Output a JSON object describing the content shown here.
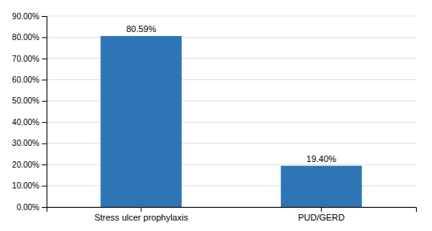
{
  "chart_data": {
    "type": "bar",
    "categories": [
      "Stress ulcer prophylaxis",
      "PUD/GERD"
    ],
    "values": [
      80.59,
      19.4
    ],
    "value_labels": [
      "80.59%",
      "19.40%"
    ],
    "data_labels": true,
    "color": "#2E75B6",
    "ylim": [
      0,
      90
    ],
    "yticks": [
      {
        "value": 0,
        "label": "0.00%"
      },
      {
        "value": 10,
        "label": "10.00%"
      },
      {
        "value": 20,
        "label": "20.00%"
      },
      {
        "value": 30,
        "label": "30.00%"
      },
      {
        "value": 40,
        "label": "40.00%"
      },
      {
        "value": 50,
        "label": "50.00%"
      },
      {
        "value": 60,
        "label": "60.00%"
      },
      {
        "value": 70,
        "label": "70.00%"
      },
      {
        "value": 80,
        "label": "80.00%"
      },
      {
        "value": 90,
        "label": "90.00%"
      }
    ],
    "grid": true
  }
}
